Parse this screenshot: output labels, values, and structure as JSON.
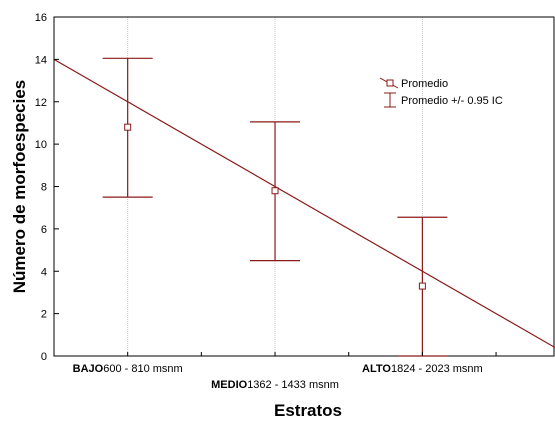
{
  "chart_data": {
    "type": "scatter",
    "xlabel": "Estratos",
    "ylabel": "Número de morfoespecies",
    "ylim": [
      0,
      16
    ],
    "yticks": [
      0,
      2,
      4,
      6,
      8,
      10,
      12,
      14,
      16
    ],
    "grid": "vertical-at-categories",
    "legend": "top-right",
    "colors": {
      "series": "#8b1a1a",
      "grid": "#c8c8c8",
      "axis": "#000000"
    },
    "categories": [
      {
        "bold": "BAJO",
        "rest": "600 - 810 msnm"
      },
      {
        "bold": "MEDIO",
        "rest": "1362 - 1433 msnm"
      },
      {
        "bold": "ALTO",
        "rest": "1824 - 2023 msnm"
      }
    ],
    "series": [
      {
        "name": "Promedio",
        "values": [
          10.8,
          7.8,
          3.3
        ]
      }
    ],
    "error_bars": {
      "name": "Promedio +/- 0.95 IC",
      "lower": [
        7.5,
        4.5,
        0.0
      ],
      "upper": [
        14.05,
        11.05,
        6.55
      ]
    },
    "trend_line": {
      "x": [
        -1.0,
        3.0
      ],
      "y": [
        16.0,
        0.0
      ]
    }
  }
}
